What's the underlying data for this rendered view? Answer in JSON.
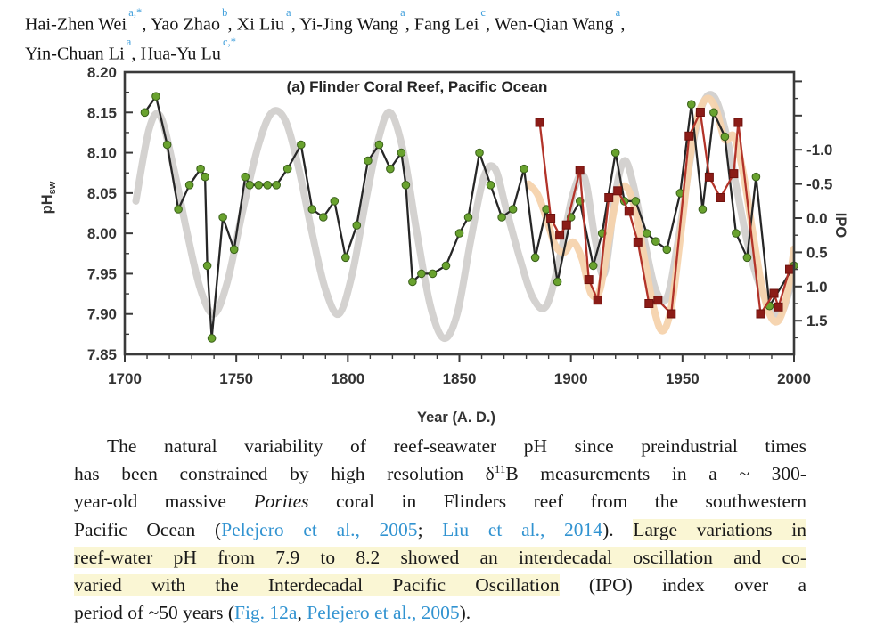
{
  "colors": {
    "affiliation_blue": "#42a0dc",
    "citation_blue": "#3193d1",
    "highlight_yellow": "#faf6d4",
    "ph_label_green": "#4fa045",
    "ipo_label_red": "#c0302a",
    "ph_line": "#262626",
    "ph_marker": "#69a22e",
    "ipo_line": "#b23329",
    "ipo_marker": "#8b1c17",
    "ph_smooth_gray": "#d2d0ce",
    "ipo_smooth_orange": "#f5d3ad",
    "axis_ink": "#3a3a3a"
  },
  "authors": {
    "line1": [
      {
        "name": "Hai-Zhen Wei",
        "sup": "a,*"
      },
      {
        "name": "Yao Zhao",
        "sup": "b"
      },
      {
        "name": "Xi Liu",
        "sup": "a"
      },
      {
        "name": "Yi-Jing Wang",
        "sup": "a"
      },
      {
        "name": "Fang Lei",
        "sup": "c"
      },
      {
        "name": "Wen-Qian Wang",
        "sup": "a"
      }
    ],
    "line2": [
      {
        "name": "Yin-Chuan Li",
        "sup": "a"
      },
      {
        "name": "Hua-Yu Lu",
        "sup": "c,*"
      }
    ],
    "separator": ", "
  },
  "chart_data": {
    "type": "line",
    "title": "(a) Flinder Coral Reef, Pacific Ocean",
    "xlabel": "Year (A. D.)",
    "ylabel_left": "pH",
    "ylabel_left_sub": "sw",
    "ylabel_right": "IPO",
    "grid": false,
    "legend": "none",
    "x_range": [
      1700,
      2000
    ],
    "x_major_ticks": [
      1700,
      1750,
      1800,
      1850,
      1900,
      1950,
      2000
    ],
    "x_minor_step": 10,
    "y_left_range": [
      7.85,
      8.2
    ],
    "y_left_ticks": [
      "8.20",
      "8.15",
      "8.10",
      "8.05",
      "8.00",
      "7.95",
      "7.90",
      "7.85"
    ],
    "y_left_tick_values": [
      8.2,
      8.15,
      8.1,
      8.05,
      8.0,
      7.95,
      7.9,
      7.85
    ],
    "y_left_minor_step": 0.025,
    "y_right_ticks": [
      "-1.0",
      "-0.5",
      "0.0",
      "0.5",
      "1.0",
      "1.5"
    ],
    "y_right_tick_values": [
      -1.0,
      -0.5,
      0.0,
      0.5,
      1.0,
      1.5
    ],
    "y_right_minor_step": 0.25,
    "y_right_inverted": true,
    "series": [
      {
        "name": "pH_sw",
        "axis": "left",
        "style": "line+markers",
        "marker": "circle",
        "line_color": "#262626",
        "marker_fill": "#69a22e",
        "marker_stroke": "#3a611a",
        "points": [
          [
            1709,
            8.15
          ],
          [
            1714,
            8.17
          ],
          [
            1719,
            8.11
          ],
          [
            1724,
            8.03
          ],
          [
            1729,
            8.06
          ],
          [
            1734,
            8.08
          ],
          [
            1736,
            8.07
          ],
          [
            1737,
            7.96
          ],
          [
            1739,
            7.87
          ],
          [
            1744,
            8.02
          ],
          [
            1749,
            7.98
          ],
          [
            1754,
            8.07
          ],
          [
            1756,
            8.06
          ],
          [
            1760,
            8.06
          ],
          [
            1764,
            8.06
          ],
          [
            1768,
            8.06
          ],
          [
            1773,
            8.08
          ],
          [
            1779,
            8.11
          ],
          [
            1784,
            8.03
          ],
          [
            1789,
            8.02
          ],
          [
            1794,
            8.04
          ],
          [
            1799,
            7.97
          ],
          [
            1804,
            8.01
          ],
          [
            1809,
            8.09
          ],
          [
            1814,
            8.11
          ],
          [
            1819,
            8.08
          ],
          [
            1824,
            8.1
          ],
          [
            1826,
            8.06
          ],
          [
            1829,
            7.94
          ],
          [
            1833,
            7.95
          ],
          [
            1838,
            7.95
          ],
          [
            1844,
            7.96
          ],
          [
            1850,
            8.0
          ],
          [
            1854,
            8.02
          ],
          [
            1859,
            8.1
          ],
          [
            1864,
            8.06
          ],
          [
            1869,
            8.02
          ],
          [
            1874,
            8.03
          ],
          [
            1879,
            8.08
          ],
          [
            1884,
            7.97
          ],
          [
            1889,
            8.03
          ],
          [
            1894,
            7.94
          ],
          [
            1900,
            8.02
          ],
          [
            1904,
            8.04
          ],
          [
            1910,
            7.96
          ],
          [
            1914,
            8.0
          ],
          [
            1920,
            8.1
          ],
          [
            1924,
            8.04
          ],
          [
            1929,
            8.04
          ],
          [
            1934,
            8.0
          ],
          [
            1938,
            7.99
          ],
          [
            1943,
            7.98
          ],
          [
            1949,
            8.05
          ],
          [
            1954,
            8.16
          ],
          [
            1959,
            8.03
          ],
          [
            1964,
            8.15
          ],
          [
            1969,
            8.12
          ],
          [
            1974,
            8.0
          ],
          [
            1979,
            7.97
          ],
          [
            1983,
            8.07
          ],
          [
            1989,
            7.91
          ],
          [
            2000,
            7.96
          ]
        ]
      },
      {
        "name": "IPO",
        "axis": "right",
        "style": "line+markers",
        "marker": "square",
        "line_color": "#b23329",
        "marker_fill": "#8b1c17",
        "marker_stroke": "#6e120e",
        "points": [
          [
            1886,
            -1.4
          ],
          [
            1891,
            0.0
          ],
          [
            1895,
            0.25
          ],
          [
            1898,
            0.1
          ],
          [
            1904,
            -0.7
          ],
          [
            1908,
            0.9
          ],
          [
            1912,
            1.2
          ],
          [
            1917,
            -0.3
          ],
          [
            1921,
            -0.4
          ],
          [
            1926,
            -0.1
          ],
          [
            1930,
            0.35
          ],
          [
            1935,
            1.25
          ],
          [
            1939,
            1.2
          ],
          [
            1945,
            1.4
          ],
          [
            1953,
            -1.2
          ],
          [
            1958,
            -1.55
          ],
          [
            1962,
            -0.6
          ],
          [
            1967,
            -0.3
          ],
          [
            1973,
            -0.65
          ],
          [
            1975,
            -1.4
          ],
          [
            1985,
            1.4
          ],
          [
            1991,
            1.1
          ],
          [
            1993,
            1.3
          ],
          [
            1998,
            0.75
          ]
        ]
      },
      {
        "name": "pH_sw smoothed (interdecadal)",
        "axis": "left",
        "style": "smooth",
        "line_color": "#d2d0ce",
        "points": [
          [
            1705,
            8.04
          ],
          [
            1711,
            8.13
          ],
          [
            1716,
            8.145
          ],
          [
            1722,
            8.08
          ],
          [
            1728,
            8.0
          ],
          [
            1734,
            7.93
          ],
          [
            1740,
            7.9
          ],
          [
            1746,
            7.94
          ],
          [
            1753,
            8.03
          ],
          [
            1760,
            8.11
          ],
          [
            1766,
            8.15
          ],
          [
            1772,
            8.14
          ],
          [
            1778,
            8.08
          ],
          [
            1784,
            8.0
          ],
          [
            1790,
            7.93
          ],
          [
            1796,
            7.9
          ],
          [
            1802,
            7.95
          ],
          [
            1808,
            8.04
          ],
          [
            1814,
            8.12
          ],
          [
            1819,
            8.15
          ],
          [
            1825,
            8.1
          ],
          [
            1831,
            8.0
          ],
          [
            1837,
            7.91
          ],
          [
            1843,
            7.87
          ],
          [
            1849,
            7.9
          ],
          [
            1855,
            7.99
          ],
          [
            1861,
            8.07
          ],
          [
            1866,
            8.08
          ],
          [
            1871,
            8.03
          ],
          [
            1877,
            7.97
          ],
          [
            1883,
            7.92
          ],
          [
            1889,
            7.91
          ],
          [
            1895,
            7.97
          ],
          [
            1901,
            8.05
          ],
          [
            1906,
            8.07
          ],
          [
            1911,
            7.99
          ],
          [
            1915,
            7.95
          ],
          [
            1920,
            8.05
          ],
          [
            1924,
            8.09
          ],
          [
            1928,
            8.06
          ],
          [
            1933,
            7.99
          ],
          [
            1938,
            7.93
          ],
          [
            1943,
            7.92
          ],
          [
            1948,
            7.99
          ],
          [
            1954,
            8.1
          ],
          [
            1959,
            8.16
          ],
          [
            1964,
            8.17
          ],
          [
            1969,
            8.13
          ],
          [
            1974,
            8.06
          ],
          [
            1979,
            7.99
          ],
          [
            1984,
            7.94
          ],
          [
            1989,
            7.91
          ],
          [
            1994,
            7.9
          ],
          [
            1998,
            7.93
          ],
          [
            2000,
            7.95
          ]
        ]
      },
      {
        "name": "IPO smoothed (interdecadal)",
        "axis": "right",
        "style": "smooth",
        "line_color": "#f5d3ad",
        "points": [
          [
            1881,
            -0.5
          ],
          [
            1885,
            -0.35
          ],
          [
            1889,
            0.0
          ],
          [
            1893,
            0.4
          ],
          [
            1897,
            0.5
          ],
          [
            1901,
            0.35
          ],
          [
            1905,
            0.6
          ],
          [
            1909,
            1.1
          ],
          [
            1913,
            1.05
          ],
          [
            1917,
            0.3
          ],
          [
            1921,
            -0.35
          ],
          [
            1925,
            -0.45
          ],
          [
            1929,
            -0.1
          ],
          [
            1933,
            0.6
          ],
          [
            1937,
            1.3
          ],
          [
            1941,
            1.65
          ],
          [
            1945,
            1.3
          ],
          [
            1949,
            0.3
          ],
          [
            1953,
            -0.8
          ],
          [
            1957,
            -1.5
          ],
          [
            1961,
            -1.75
          ],
          [
            1965,
            -1.6
          ],
          [
            1969,
            -1.15
          ],
          [
            1973,
            -1.2
          ],
          [
            1977,
            -0.7
          ],
          [
            1981,
            0.1
          ],
          [
            1985,
            0.9
          ],
          [
            1989,
            1.4
          ],
          [
            1993,
            1.5
          ],
          [
            1997,
            1.1
          ],
          [
            2000,
            0.45
          ]
        ]
      }
    ]
  },
  "paragraph": {
    "lines": [
      [
        {
          "t": "The natural variability of reef-seawater pH since preindustrial times"
        }
      ],
      [
        {
          "t": "has been constrained by high resolution δ"
        },
        {
          "t": "11",
          "s": "sup"
        },
        {
          "t": "B measurements in a ~ 300-"
        }
      ],
      [
        {
          "t": "year-old massive "
        },
        {
          "t": "Porites",
          "s": "it"
        },
        {
          "t": " coral in Flinders reef from the southwestern"
        }
      ],
      [
        {
          "t": "Pacific Ocean ("
        },
        {
          "t": "Pelejero et al., 2005",
          "s": "link"
        },
        {
          "t": "; "
        },
        {
          "t": "Liu et al., 2014",
          "s": "link"
        },
        {
          "t": "). "
        },
        {
          "t": "Large variations in",
          "s": "hl"
        }
      ],
      [
        {
          "t": "reef-water pH from 7.9 to 8.2 showed an interdecadal oscillation and co-",
          "s": "hl"
        }
      ],
      [
        {
          "t": "varied with the Interdecadal Pacific Oscillation",
          "s": "hl"
        },
        {
          "t": " (IPO) index over a"
        }
      ],
      [
        {
          "t": "period of ~50 years ("
        },
        {
          "t": "Fig. 12a",
          "s": "link"
        },
        {
          "t": ", "
        },
        {
          "t": "Pelejero et al., 2005",
          "s": "link"
        },
        {
          "t": ")."
        }
      ]
    ]
  }
}
